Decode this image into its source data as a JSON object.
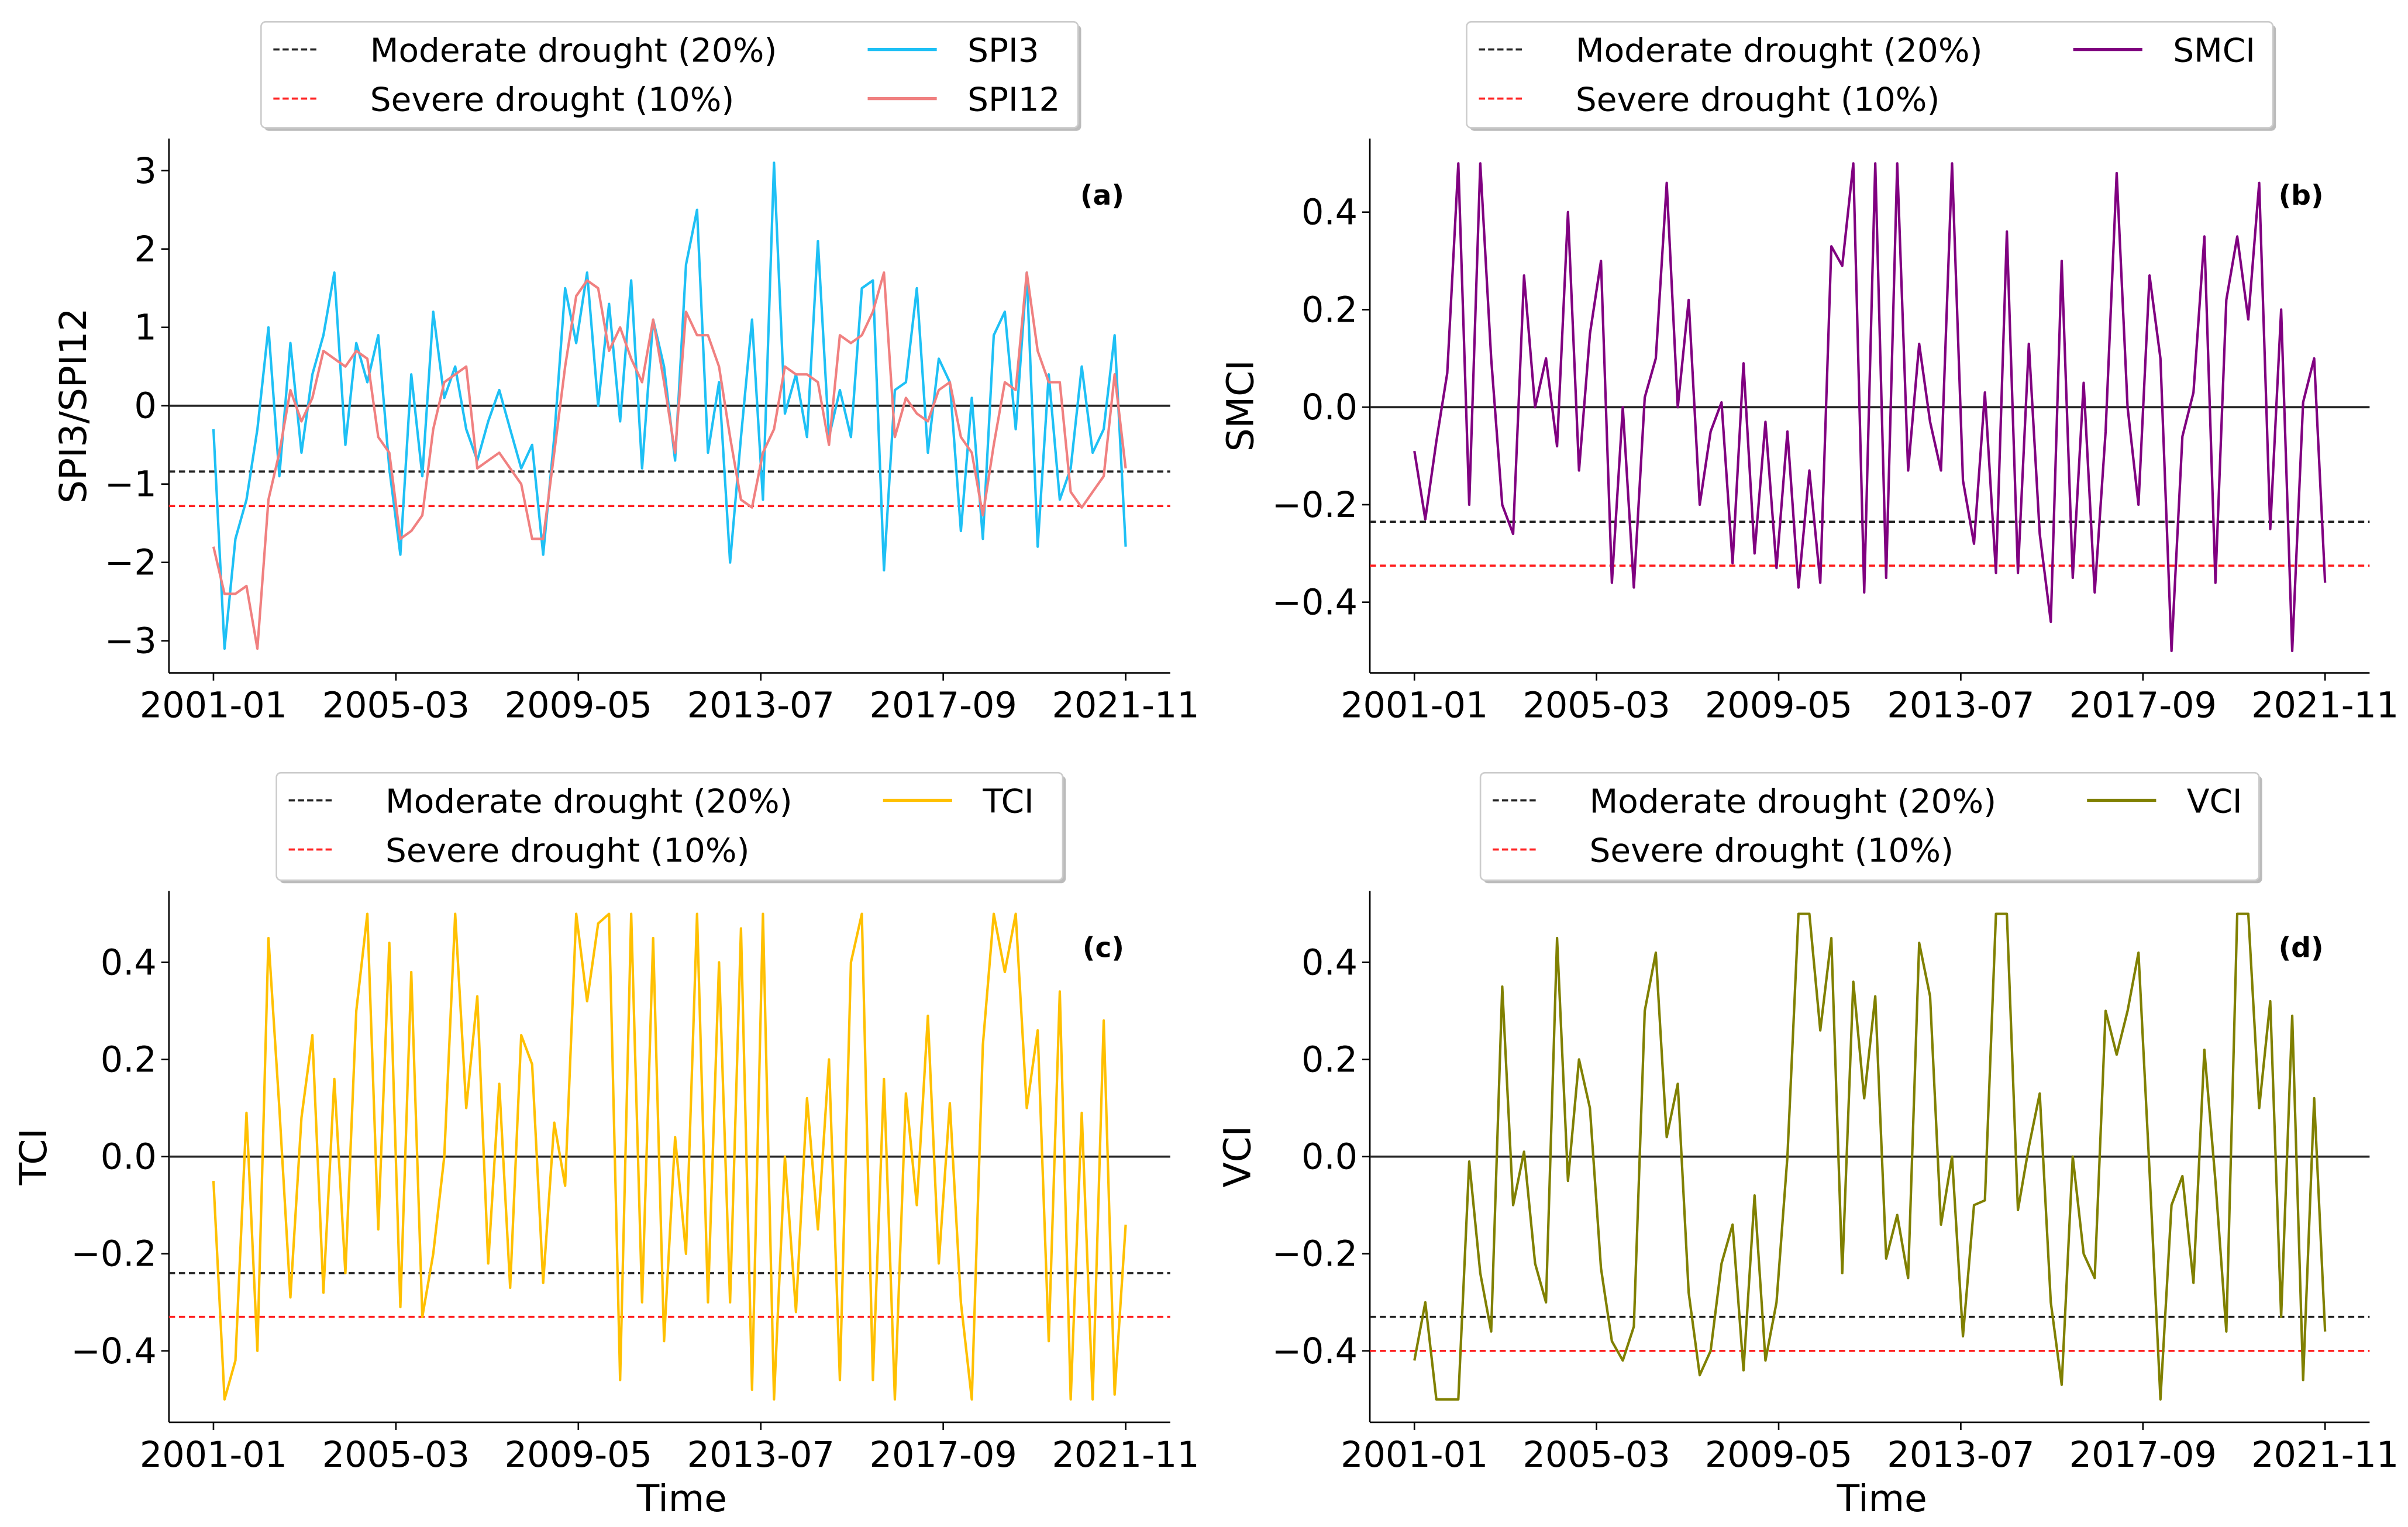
{
  "chart_data": [
    {
      "type": "line",
      "panel_label": "(a)",
      "ylabel": "SPI3/SPI12",
      "xlabel": "",
      "x_start": "2001-01",
      "x_step_months": 3,
      "x_ticks": [
        "2001-01",
        "2005-03",
        "2009-05",
        "2013-07",
        "2017-09",
        "2021-11"
      ],
      "y_ticks": [
        3,
        2,
        1,
        0,
        -1,
        -2,
        -3
      ],
      "y_tick_labels": [
        "3",
        "2",
        "1",
        "0",
        "−1",
        "−2",
        "−3"
      ],
      "ylim": [
        -3.41,
        3.41
      ],
      "zero_line": 0,
      "thresholds": [
        {
          "name": "Moderate drought (20%)",
          "value": -0.84,
          "color": "#222222"
        },
        {
          "name": "Severe drought (10%)",
          "value": -1.28,
          "color": "#ff2020"
        }
      ],
      "series": [
        {
          "name": "SPI3",
          "color": "#1ec0f5",
          "values": [
            -0.3,
            -3.1,
            -1.7,
            -1.2,
            -0.3,
            1.0,
            -0.9,
            0.8,
            -0.6,
            0.4,
            0.9,
            1.7,
            -0.5,
            0.8,
            0.3,
            0.9,
            -0.8,
            -1.9,
            0.4,
            -0.9,
            1.2,
            0.1,
            0.5,
            -0.3,
            -0.7,
            -0.2,
            0.2,
            -0.3,
            -0.8,
            -0.5,
            -1.9,
            -0.4,
            1.5,
            0.8,
            1.7,
            0.0,
            1.3,
            -0.2,
            1.6,
            -0.8,
            1.1,
            0.5,
            -0.7,
            1.8,
            2.5,
            -0.6,
            0.3,
            -2.0,
            -0.4,
            1.1,
            -1.2,
            3.1,
            -0.1,
            0.4,
            -0.4,
            2.1,
            -0.4,
            0.2,
            -0.4,
            1.5,
            1.6,
            -2.1,
            0.2,
            0.3,
            1.5,
            -0.6,
            0.6,
            0.3,
            -1.6,
            0.1,
            -1.7,
            0.9,
            1.2,
            -0.3,
            1.7,
            -1.8,
            0.4,
            -1.2,
            -0.8,
            0.5,
            -0.6,
            -0.3,
            0.9,
            -1.8
          ]
        },
        {
          "name": "SPI12",
          "color": "#f08080",
          "values": [
            -1.8,
            -2.4,
            -2.4,
            -2.3,
            -3.1,
            -1.2,
            -0.6,
            0.2,
            -0.2,
            0.1,
            0.7,
            0.6,
            0.5,
            0.7,
            0.6,
            -0.4,
            -0.6,
            -1.7,
            -1.6,
            -1.4,
            -0.3,
            0.3,
            0.4,
            0.5,
            -0.8,
            -0.7,
            -0.6,
            -0.8,
            -1.0,
            -1.7,
            -1.7,
            -0.6,
            0.5,
            1.4,
            1.6,
            1.5,
            0.7,
            1.0,
            0.6,
            0.3,
            1.1,
            0.3,
            -0.6,
            1.2,
            0.9,
            0.9,
            0.5,
            -0.4,
            -1.2,
            -1.3,
            -0.6,
            -0.3,
            0.5,
            0.4,
            0.4,
            0.3,
            -0.5,
            0.9,
            0.8,
            0.9,
            1.2,
            1.7,
            -0.4,
            0.1,
            -0.1,
            -0.2,
            0.2,
            0.3,
            -0.4,
            -0.6,
            -1.4,
            -0.5,
            0.3,
            0.2,
            1.7,
            0.7,
            0.3,
            0.3,
            -1.1,
            -1.3,
            -1.1,
            -0.9,
            0.4,
            -0.8
          ]
        }
      ]
    },
    {
      "type": "line",
      "panel_label": "(b)",
      "ylabel": "SMCI",
      "xlabel": "",
      "x_start": "2001-01",
      "x_step_months": 3,
      "x_ticks": [
        "2001-01",
        "2005-03",
        "2009-05",
        "2013-07",
        "2017-09",
        "2021-11"
      ],
      "y_ticks": [
        0.4,
        0.2,
        0,
        -0.2,
        -0.4
      ],
      "y_tick_labels": [
        "0.4",
        "0.2",
        "0.0",
        "−0.2",
        "−0.4"
      ],
      "ylim": [
        -0.545,
        0.551
      ],
      "zero_line": 0,
      "thresholds": [
        {
          "name": "Moderate drought (20%)",
          "value": -0.235,
          "color": "#222222"
        },
        {
          "name": "Severe drought (10%)",
          "value": -0.325,
          "color": "#ff2020"
        }
      ],
      "series": [
        {
          "name": "SMCI",
          "color": "#800080",
          "values": [
            -0.09,
            -0.23,
            -0.07,
            0.07,
            0.5,
            -0.2,
            0.5,
            0.1,
            -0.2,
            -0.26,
            0.27,
            0.0,
            0.1,
            -0.08,
            0.4,
            -0.13,
            0.15,
            0.3,
            -0.36,
            0.0,
            -0.37,
            0.02,
            0.1,
            0.46,
            0.0,
            0.22,
            -0.2,
            -0.05,
            0.01,
            -0.32,
            0.09,
            -0.3,
            -0.03,
            -0.33,
            -0.05,
            -0.37,
            -0.13,
            -0.36,
            0.33,
            0.29,
            0.5,
            -0.38,
            0.5,
            -0.35,
            0.5,
            -0.13,
            0.13,
            -0.03,
            -0.13,
            0.5,
            -0.15,
            -0.28,
            0.03,
            -0.34,
            0.36,
            -0.34,
            0.13,
            -0.26,
            -0.44,
            0.3,
            -0.35,
            0.05,
            -0.38,
            -0.05,
            0.48,
            0.0,
            -0.2,
            0.27,
            0.1,
            -0.5,
            -0.06,
            0.03,
            0.35,
            -0.36,
            0.22,
            0.35,
            0.18,
            0.46,
            -0.25,
            0.2,
            -0.5,
            0.01,
            0.1,
            -0.36
          ]
        }
      ]
    },
    {
      "type": "line",
      "panel_label": "(c)",
      "ylabel": "TCI",
      "xlabel": "Time",
      "x_start": "2001-01",
      "x_step_months": 3,
      "x_ticks": [
        "2001-01",
        "2005-03",
        "2009-05",
        "2013-07",
        "2017-09",
        "2021-11"
      ],
      "y_ticks": [
        0.4,
        0.2,
        0,
        -0.2,
        -0.4
      ],
      "y_tick_labels": [
        "0.4",
        "0.2",
        "0.0",
        "−0.2",
        "−0.4"
      ],
      "ylim": [
        -0.547,
        0.547
      ],
      "zero_line": 0,
      "thresholds": [
        {
          "name": "Moderate drought (20%)",
          "value": -0.24,
          "color": "#222222"
        },
        {
          "name": "Severe drought (10%)",
          "value": -0.33,
          "color": "#ff2020"
        }
      ],
      "series": [
        {
          "name": "TCI",
          "color": "#ffc000",
          "values": [
            -0.05,
            -0.5,
            -0.42,
            0.09,
            -0.4,
            0.45,
            0.1,
            -0.29,
            0.08,
            0.25,
            -0.28,
            0.16,
            -0.24,
            0.3,
            0.5,
            -0.15,
            0.44,
            -0.31,
            0.38,
            -0.33,
            -0.2,
            0.0,
            0.5,
            0.1,
            0.33,
            -0.22,
            0.15,
            -0.27,
            0.25,
            0.19,
            -0.26,
            0.07,
            -0.06,
            0.5,
            0.32,
            0.48,
            0.5,
            -0.46,
            0.5,
            -0.3,
            0.45,
            -0.38,
            0.04,
            -0.2,
            0.5,
            -0.3,
            0.4,
            -0.3,
            0.47,
            -0.48,
            0.5,
            -0.5,
            0.0,
            -0.32,
            0.12,
            -0.15,
            0.2,
            -0.46,
            0.4,
            0.5,
            -0.46,
            0.16,
            -0.5,
            0.13,
            -0.1,
            0.29,
            -0.22,
            0.11,
            -0.3,
            -0.5,
            0.23,
            0.5,
            0.38,
            0.5,
            0.1,
            0.26,
            -0.38,
            0.34,
            -0.5,
            0.09,
            -0.5,
            0.28,
            -0.49,
            -0.14
          ]
        }
      ]
    },
    {
      "type": "line",
      "panel_label": "(d)",
      "ylabel": "VCI",
      "xlabel": "Time",
      "x_start": "2001-01",
      "x_step_months": 3,
      "x_ticks": [
        "2001-01",
        "2005-03",
        "2009-05",
        "2013-07",
        "2017-09",
        "2021-11"
      ],
      "y_ticks": [
        0.4,
        0.2,
        0,
        -0.2,
        -0.4
      ],
      "y_tick_labels": [
        "0.4",
        "0.2",
        "0.0",
        "−0.2",
        "−0.4"
      ],
      "ylim": [
        -0.547,
        0.547
      ],
      "zero_line": 0,
      "thresholds": [
        {
          "name": "Moderate drought (20%)",
          "value": -0.33,
          "color": "#222222"
        },
        {
          "name": "Severe drought (10%)",
          "value": -0.4,
          "color": "#ff2020"
        }
      ],
      "series": [
        {
          "name": "VCI",
          "color": "#808000",
          "values": [
            -0.42,
            -0.3,
            -0.5,
            -0.5,
            -0.5,
            -0.01,
            -0.24,
            -0.36,
            0.35,
            -0.1,
            0.01,
            -0.22,
            -0.3,
            0.45,
            -0.05,
            0.2,
            0.1,
            -0.23,
            -0.38,
            -0.42,
            -0.35,
            0.3,
            0.42,
            0.04,
            0.15,
            -0.28,
            -0.45,
            -0.4,
            -0.22,
            -0.14,
            -0.44,
            -0.08,
            -0.42,
            -0.3,
            0.0,
            0.5,
            0.5,
            0.26,
            0.45,
            -0.24,
            0.36,
            0.12,
            0.33,
            -0.21,
            -0.12,
            -0.25,
            0.44,
            0.33,
            -0.14,
            0.0,
            -0.37,
            -0.1,
            -0.09,
            0.5,
            0.5,
            -0.11,
            0.02,
            0.13,
            -0.3,
            -0.47,
            0.0,
            -0.2,
            -0.25,
            0.3,
            0.21,
            0.3,
            0.42,
            -0.03,
            -0.5,
            -0.1,
            -0.04,
            -0.26,
            0.22,
            -0.05,
            -0.36,
            0.5,
            0.5,
            0.1,
            0.32,
            -0.33,
            0.29,
            -0.46,
            0.12,
            -0.36
          ]
        }
      ]
    }
  ]
}
